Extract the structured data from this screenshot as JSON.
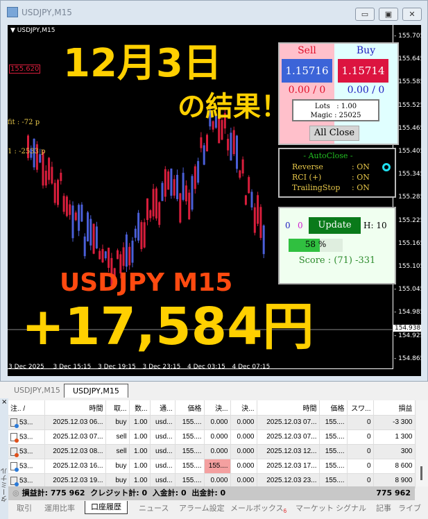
{
  "window": {
    "title": "USDJPY,M15",
    "symbol_label": "USDJPY,M15"
  },
  "chart": {
    "price_labels": [
      "155.705",
      "155.645",
      "155.585",
      "155.525",
      "155.465",
      "155.405",
      "155.345",
      "155.285",
      "155.225",
      "155.165",
      "155.105",
      "155.045",
      "154.985",
      "154.925",
      "154.865"
    ],
    "current_price": "154.938",
    "time_labels": [
      "3 Dec 2025",
      "3 Dec 15:15",
      "3 Dec 19:15",
      "3 Dec 23:15",
      "4 Dec 03:15",
      "4 Dec 07:15"
    ],
    "line_label": "155.620",
    "left_label1": "fit : -72 p",
    "left_label2": "1 : -2533 p",
    "colors": {
      "bull": "#4a5fd8",
      "bear": "#d81e3c"
    }
  },
  "overlay": {
    "date": "12月3日",
    "result": "の結果！",
    "pair": "USDJPY M15",
    "profit": "+17,584円"
  },
  "panel": {
    "sell_label": "Sell",
    "buy_label": "Buy",
    "sell_price": "1.15716",
    "buy_price": "1.15714",
    "sell_pl": "0.00 / 0",
    "buy_pl": "0.00 / 0",
    "lots": "Lots   : 1.00",
    "magic": "Magic : 25025",
    "all_close": "All Close",
    "autoclose_title": "- AutoClose -",
    "autoclose": [
      {
        "name": "Reverse",
        "value": ": ON"
      },
      {
        "name": "RCI (+)",
        "value": ": ON"
      },
      {
        "name": "TrailingStop",
        "value": ": ON"
      }
    ],
    "count_blue": "0",
    "count_magenta": "0",
    "update": "Update",
    "h": "H: 10",
    "progress_label": "58 %",
    "progress": 58,
    "score": "Score : (71) -331"
  },
  "chart_tabs": [
    "USDJPY,M15",
    "USDJPY,M15"
  ],
  "terminal": {
    "side_label": "ターミナル",
    "columns": [
      "注.. /",
      "時間",
      "取...",
      "数...",
      "通...",
      "価格",
      "決...",
      "決...",
      "時間",
      "価格",
      "スワ...",
      "損益"
    ],
    "rows": [
      {
        "type": "buy",
        "cells": [
          "53...",
          "2025.12.03 06...",
          "buy",
          "1.00",
          "usd...",
          "155....",
          "0.000",
          "0.000",
          "2025.12.03 07...",
          "155....",
          "0",
          "-3 300"
        ]
      },
      {
        "type": "sell",
        "cells": [
          "53...",
          "2025.12.03 07...",
          "sell",
          "1.00",
          "usd...",
          "155....",
          "0.000",
          "0.000",
          "2025.12.03 07...",
          "155....",
          "0",
          "1 300"
        ]
      },
      {
        "type": "sell",
        "cells": [
          "53...",
          "2025.12.03 08...",
          "sell",
          "1.00",
          "usd...",
          "155....",
          "0.000",
          "0.000",
          "2025.12.03 12...",
          "155....",
          "0",
          "300"
        ]
      },
      {
        "type": "buy",
        "cells": [
          "53...",
          "2025.12.03 16...",
          "buy",
          "1.00",
          "usd...",
          "155....",
          "155....",
          "0.000",
          "2025.12.03 17...",
          "155....",
          "0",
          "8 600"
        ]
      },
      {
        "type": "buy",
        "cells": [
          "53...",
          "2025.12.03 19...",
          "buy",
          "1.00",
          "usd...",
          "155....",
          "0.000",
          "0.000",
          "2025.12.03 23...",
          "155....",
          "0",
          "8 900"
        ]
      }
    ],
    "footer": "損益計: 775 962  クレジット計: 0  入金計: 0  出金計: 0",
    "footer_total": "775 962",
    "tabs": [
      "取引",
      "運用比率",
      "口座履歴",
      "ニュース",
      "アラーム設定",
      "メールボックス",
      "マーケット",
      "シグナル",
      "記事",
      "ライブ"
    ],
    "mailbox_badge": "6",
    "active_tab": "口座履歴"
  }
}
